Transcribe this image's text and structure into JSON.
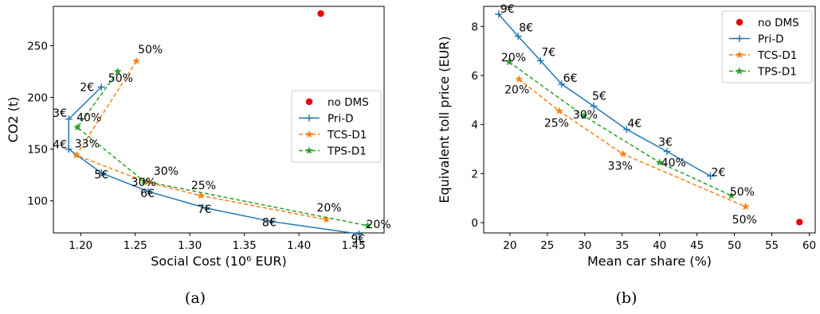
{
  "colors": {
    "nodms": "#e8000b",
    "prid": "#1f77b4",
    "tcs": "#ff7f0e",
    "tps": "#2ca02c"
  },
  "chart_data": [
    {
      "type": "line",
      "caption": "(a)",
      "xlabel": "Social Cost (10⁶ EUR)",
      "ylabel": "CO2 (t)",
      "xlim": [
        1.175,
        1.478
      ],
      "ylim": [
        69,
        288
      ],
      "xticks": [
        1.2,
        1.25,
        1.3,
        1.35,
        1.4,
        1.45
      ],
      "xtick_labels": [
        "1.20",
        "1.25",
        "1.30",
        "1.35",
        "1.40",
        "1.45"
      ],
      "yticks": [
        100,
        150,
        200,
        250
      ],
      "ytick_labels": [
        "100",
        "150",
        "200",
        "250"
      ],
      "legend_position": "center right",
      "series": [
        {
          "name": "no DMS",
          "key": "nodms",
          "style": "dot",
          "points": [
            [
              1.42,
              281,
              ""
            ]
          ]
        },
        {
          "name": "Pri-D",
          "key": "prid",
          "style": "solid",
          "marker": "plus",
          "points": [
            [
              1.219,
              210,
              "2€"
            ],
            [
              1.189,
              179,
              "3€"
            ],
            [
              1.189,
              150,
              "4€"
            ],
            [
              1.219,
              127,
              "5€"
            ],
            [
              1.262,
              109,
              "6€"
            ],
            [
              1.315,
              93,
              "7€"
            ],
            [
              1.375,
              80,
              "8€"
            ],
            [
              1.455,
              68,
              "9€"
            ]
          ]
        },
        {
          "name": "TCS-D1",
          "key": "tcs",
          "style": "dashed",
          "marker": "star",
          "points": [
            [
              1.251,
              235,
              "50%"
            ],
            [
              1.196,
              144,
              "33%"
            ],
            [
              1.261,
              118,
              "30%"
            ],
            [
              1.31,
              105,
              "25%"
            ],
            [
              1.425,
              82,
              "20%"
            ]
          ]
        },
        {
          "name": "TPS-D1",
          "key": "tps",
          "style": "dashed",
          "marker": "star",
          "points": [
            [
              1.234,
              225,
              "50%"
            ],
            [
              1.197,
              171,
              "40%"
            ],
            [
              1.258,
              119,
              "30%"
            ],
            [
              1.463,
              76,
              "20%"
            ]
          ]
        }
      ]
    },
    {
      "type": "line",
      "caption": "(b)",
      "xlabel": "Mean car share (%)",
      "ylabel": "Equivalent toll price (EUR)",
      "xlim": [
        16.5,
        60.8
      ],
      "ylim": [
        -0.42,
        8.82
      ],
      "xticks": [
        20,
        25,
        30,
        35,
        40,
        45,
        50,
        55,
        60
      ],
      "xtick_labels": [
        "20",
        "25",
        "30",
        "35",
        "40",
        "45",
        "50",
        "55",
        "60"
      ],
      "yticks": [
        0,
        2,
        4,
        6,
        8
      ],
      "ytick_labels": [
        "0",
        "2",
        "4",
        "6",
        "8"
      ],
      "legend_position": "upper right",
      "series": [
        {
          "name": "no DMS",
          "key": "nodms",
          "style": "dot",
          "points": [
            [
              58.7,
              0.02,
              ""
            ]
          ]
        },
        {
          "name": "Pri-D",
          "key": "prid",
          "style": "solid",
          "marker": "plus",
          "points": [
            [
              18.5,
              8.5,
              "9€"
            ],
            [
              21.1,
              7.6,
              "8€"
            ],
            [
              24.1,
              6.6,
              "7€"
            ],
            [
              26.9,
              5.65,
              "6€"
            ],
            [
              31.2,
              4.75,
              "5€"
            ],
            [
              35.6,
              3.8,
              "4€"
            ],
            [
              41.0,
              2.9,
              "3€"
            ],
            [
              46.8,
              1.9,
              "2€"
            ]
          ]
        },
        {
          "name": "TCS-D1",
          "key": "tcs",
          "style": "dashed",
          "marker": "star",
          "points": [
            [
              21.2,
              5.85,
              "20%"
            ],
            [
              26.6,
              4.55,
              "25%"
            ],
            [
              35.1,
              2.8,
              "33%"
            ],
            [
              51.5,
              0.65,
              "50%"
            ]
          ]
        },
        {
          "name": "TPS-D1",
          "key": "tps",
          "style": "dashed",
          "marker": "star",
          "points": [
            [
              19.9,
              6.55,
              "20%"
            ],
            [
              29.9,
              4.35,
              "30%"
            ],
            [
              40.0,
              2.45,
              "40%"
            ],
            [
              49.6,
              1.1,
              "50%"
            ]
          ]
        }
      ]
    }
  ]
}
